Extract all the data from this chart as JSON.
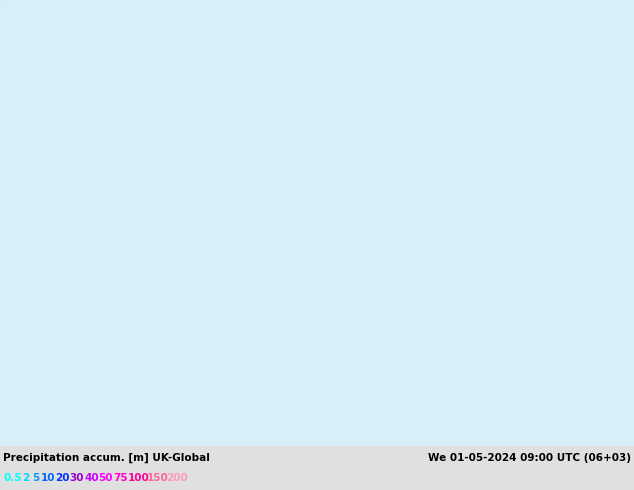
{
  "title_left": "Precipitation accum. [m] UK-Global",
  "title_right": "We 01-05-2024 09:00 UTC (06+03)",
  "legend_values": [
    "0.5",
    "2",
    "5",
    "10",
    "20",
    "30",
    "40",
    "50",
    "75",
    "100",
    "150",
    "200"
  ],
  "legend_colors": [
    "#00ffff",
    "#00ccff",
    "#0099ff",
    "#0066ff",
    "#0033ff",
    "#cc00ff",
    "#ff00ff",
    "#ff66ff",
    "#ff99ff",
    "#ffaaff",
    "#ffccff",
    "#ffddff"
  ],
  "bg_color": "#e0e0e0",
  "sea_color": "#d8eef8",
  "land_color": "#c8e8a8",
  "precip_light": "#80e8ff",
  "precip_medium": "#40c0f0",
  "fig_width": 6.34,
  "fig_height": 4.9,
  "dpi": 100,
  "extent": [
    -22,
    18,
    45,
    65
  ],
  "bottom_bar_height": 0.09
}
